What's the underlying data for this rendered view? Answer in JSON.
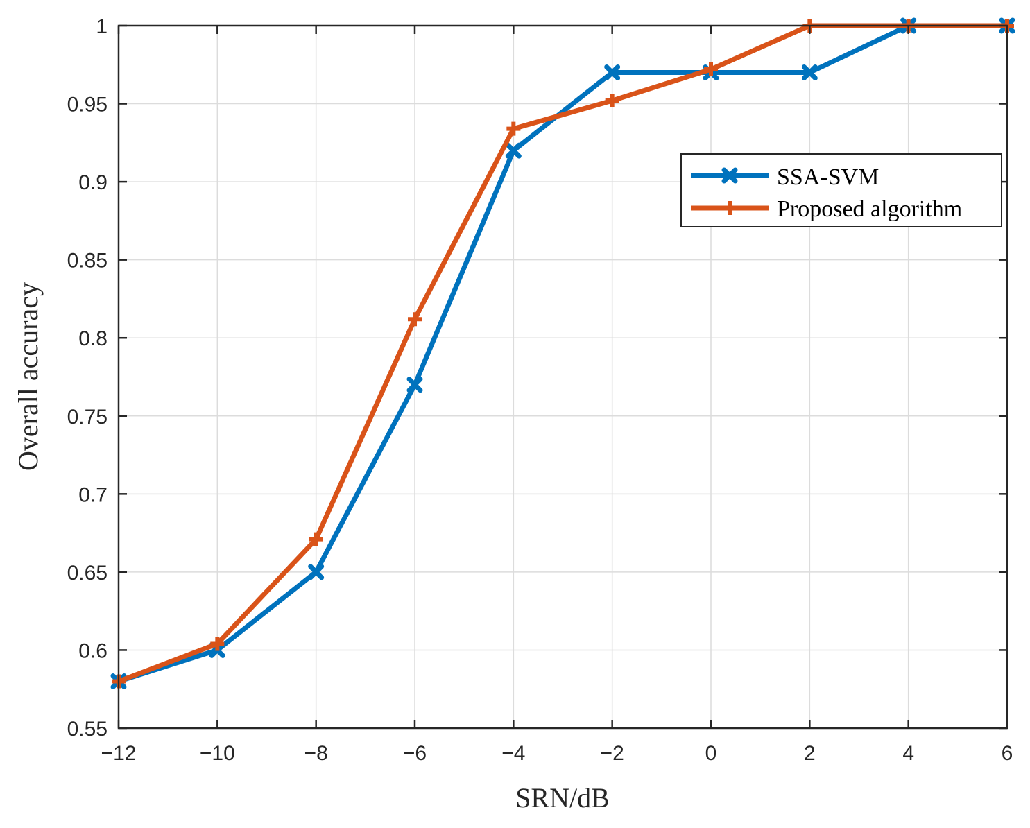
{
  "chart_data": {
    "type": "line",
    "title": "",
    "xlabel": "SRN/dB",
    "ylabel": "Overall accuracy",
    "x": [
      -12,
      -10,
      -8,
      -6,
      -4,
      -2,
      0,
      2,
      4,
      6
    ],
    "x_tick_labels": [
      "−12",
      "−10",
      "−8",
      "−6",
      "−4",
      "−2",
      "0",
      "2",
      "4",
      "6"
    ],
    "y_ticks": [
      0.55,
      0.6,
      0.65,
      0.7,
      0.75,
      0.8,
      0.85,
      0.9,
      0.95,
      1
    ],
    "y_tick_labels": [
      "0.55",
      "0.6",
      "0.65",
      "0.7",
      "0.75",
      "0.8",
      "0.85",
      "0.9",
      "0.95",
      "1"
    ],
    "xlim": [
      -12,
      6
    ],
    "ylim": [
      0.55,
      1
    ],
    "grid": true,
    "legend_position": "upper-right",
    "series": [
      {
        "name": "SSA-SVM",
        "color": "#0072BD",
        "marker": "x",
        "values": [
          0.58,
          0.6,
          0.65,
          0.77,
          0.92,
          0.97,
          0.97,
          0.97,
          1.0,
          1.0
        ]
      },
      {
        "name": "Proposed algorithm",
        "color": "#D95319",
        "marker": "+",
        "values": [
          0.58,
          0.604,
          0.671,
          0.812,
          0.934,
          0.952,
          0.972,
          1.0,
          1.0,
          1.0
        ]
      }
    ]
  }
}
